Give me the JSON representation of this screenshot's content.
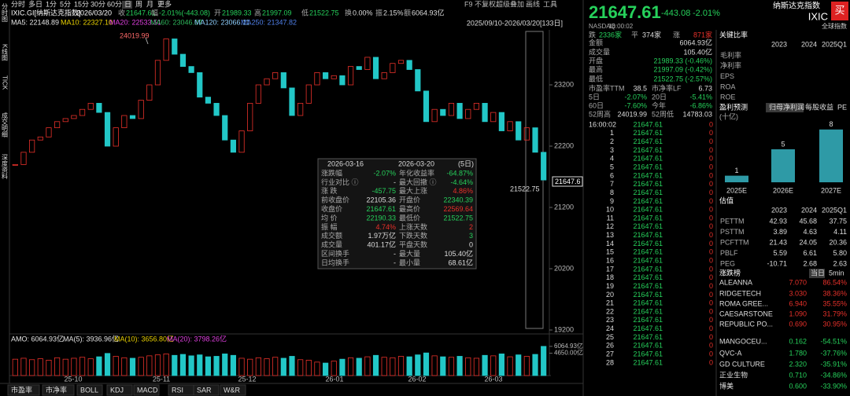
{
  "toolbar": [
    "分时",
    "多日",
    "1分",
    "5分",
    "15分",
    "30分",
    "60分",
    "日",
    "周",
    "月",
    "更多"
  ],
  "top_right": [
    "F9",
    "不复权",
    "超级叠加",
    "画线",
    "工具"
  ],
  "side_tabs": [
    "分时图",
    "K线图",
    "TICK",
    "成交明细",
    "深度资料"
  ],
  "info": {
    "name": "IXIC.GI[纳斯达克指数]",
    "date": "2026/03/20",
    "items": [
      {
        "label": "收",
        "value": "21647.61",
        "color": "#26d15b"
      },
      {
        "label": "幅",
        "value": "-2.01%(-443.08)",
        "color": "#26d15b"
      },
      {
        "label": "开",
        "value": "21989.33",
        "color": "#26d15b"
      },
      {
        "label": "高",
        "value": "21997.09",
        "color": "#26d15b"
      },
      {
        "label": "低",
        "value": "21522.75",
        "color": "#26d15b"
      },
      {
        "label": "换",
        "value": "0.00%",
        "color": "#dddddd"
      },
      {
        "label": "振",
        "value": "2.15%",
        "color": "#dddddd"
      },
      {
        "label": "额",
        "value": "6064.93亿",
        "color": "#dddddd"
      }
    ]
  },
  "ma": [
    {
      "label": "MA5: 22148.89",
      "color": "#e6e6e6"
    },
    {
      "label": "MA10: 22327.10",
      "color": "#e8d000"
    },
    {
      "label": "MA20: 22533.51",
      "color": "#e040e0"
    },
    {
      "label": "MA60: 23046.07",
      "color": "#2eb85c"
    },
    {
      "label": "MA120: 23066.11",
      "color": "#8fd0ff"
    },
    {
      "label": "MA250: 21347.82",
      "color": "#4f7fe8"
    }
  ],
  "range": "2025/09/10-2026/03/20[133日]",
  "kline": {
    "ylim": [
      19136,
      24072
    ],
    "yticks": [
      19200,
      20200,
      21200,
      22200,
      23200
    ],
    "up_color": "#e8312a",
    "down_color": "#22c7c7",
    "closes": [
      21900,
      22100,
      22300,
      22350,
      22500,
      22600,
      22650,
      22700,
      22800,
      22900,
      22750,
      22200,
      22500,
      22700,
      22650,
      22950,
      23200,
      23600,
      23950,
      23700,
      23500,
      23400,
      23000,
      22900,
      22700,
      22300,
      22100,
      22450,
      22900,
      23200,
      23300,
      23400,
      23150,
      22700,
      22900,
      23200,
      23400,
      23300,
      23350,
      23200,
      23500,
      23450,
      23650,
      23300,
      23400,
      23550,
      23600,
      23450,
      23100,
      22600,
      22800,
      22700,
      22900,
      22650,
      22800,
      22900,
      22600,
      22750,
      22450,
      22600,
      22300,
      22500,
      22100,
      21647.61
    ],
    "high_label": "24019.99",
    "low_label": "21522.75",
    "last_label": "21647.6"
  },
  "popup": {
    "start": "2026-03-16",
    "end": "2026-03-20",
    "days": "(5日)",
    "rows": [
      {
        "l1": "涨跌幅",
        "v1": "-2.07%",
        "c1": "#26d15b",
        "l2": "年化收益率",
        "v2": "-64.87%",
        "c2": "#26d15b"
      },
      {
        "l1": "行业对比 ⓘ",
        "v1": "-",
        "c1": "#dddddd",
        "l2": "最大回撤 ⓘ",
        "v2": "-4.64%",
        "c2": "#26d15b"
      },
      {
        "l1": "涨 跌",
        "v1": "-457.75",
        "c1": "#26d15b",
        "l2": "最大上涨",
        "v2": "4.86%",
        "c2": "#e8312a"
      },
      {
        "l1": "前收盘价",
        "v1": "22105.36",
        "c1": "#dddddd",
        "l2": "开盘价",
        "v2": "22340.39",
        "c2": "#26d15b"
      },
      {
        "l1": "收盘价",
        "v1": "21647.61",
        "c1": "#26d15b",
        "l2": "最高价",
        "v2": "22569.64",
        "c2": "#e8312a"
      },
      {
        "l1": "均 价",
        "v1": "22190.33",
        "c1": "#26d15b",
        "l2": "最低价",
        "v2": "21522.75",
        "c2": "#26d15b"
      },
      {
        "l1": "振 幅",
        "v1": "4.74%",
        "c1": "#e8312a",
        "l2": "上涨天数",
        "v2": "2",
        "c2": "#e8312a"
      },
      {
        "l1": "成交额",
        "v1": "1.97万亿",
        "c1": "#dddddd",
        "l2": "下跌天数",
        "v2": "3",
        "c2": "#26d15b"
      },
      {
        "l1": "成交量",
        "v1": "401.17亿",
        "c1": "#dddddd",
        "l2": "平盘天数",
        "v2": "0",
        "c2": "#dddddd"
      },
      {
        "l1": "区间换手",
        "v1": "-",
        "c1": "#dddddd",
        "l2": "最大量",
        "v2": "105.40亿",
        "c2": "#dddddd"
      },
      {
        "l1": "日均换手",
        "v1": "-",
        "c1": "#dddddd",
        "l2": "最小量",
        "v2": "68.61亿",
        "c2": "#dddddd"
      }
    ]
  },
  "amo": {
    "items": [
      {
        "label": "AMO: 6064.93亿",
        "color": "#e6e6e6"
      },
      {
        "label": "MA(5): 3936.96亿",
        "color": "#e6e6e6"
      },
      {
        "label": "MA(10): 3656.80亿",
        "color": "#e8d000"
      },
      {
        "label": "MA(20): 3798.26亿",
        "color": "#e040e0"
      }
    ],
    "ylim": [
      0,
      6200
    ],
    "ticks": [
      {
        "value": 6064.93,
        "label": "6064.93亿"
      },
      {
        "value": 4650,
        "label": "4650.00亿"
      }
    ],
    "volumes": [
      3400,
      3600,
      3300,
      3500,
      3200,
      3700,
      3400,
      3600,
      3800,
      3500,
      3900,
      4600,
      4000,
      3700,
      3600,
      3800,
      4100,
      4300,
      4500,
      4200,
      4400,
      4100,
      4300,
      3900,
      4000,
      4500,
      4200,
      3600,
      3400,
      3700,
      3500,
      3800,
      3600,
      4000,
      3300,
      3200,
      2800,
      2600,
      3000,
      3400,
      3700,
      3600,
      3900,
      4200,
      3800,
      3700,
      4000,
      3900,
      4300,
      4700,
      4100,
      3900,
      3800,
      4000,
      3700,
      3600,
      4200,
      4100,
      4500,
      3900,
      4300,
      4000,
      4400,
      6064.93
    ]
  },
  "dates": [
    "25-10",
    "25-11",
    "25-12",
    "26-01",
    "26-02",
    "26-03"
  ],
  "bottom_tabs": [
    "市盈率",
    "市净率",
    "BOLL",
    "KDJ",
    "MACD",
    "RSI",
    "SAR",
    "W&R"
  ],
  "quote": {
    "price": "21647.61",
    "change": "-443.08",
    "pct": "-2.01%",
    "name": "纳斯达克指数",
    "code": "IXIC",
    "buy": "买",
    "group": "全球指数",
    "exchange": "NASDAQ",
    "time": "16:00:02",
    "stats": [
      [
        {
          "label": "跌",
          "value": "2336家",
          "color": "#26d15b"
        },
        {
          "label": "平",
          "value": "374家",
          "color": "#dddddd"
        },
        {
          "label": "涨",
          "value": "871家",
          "color": "#e8312a"
        }
      ],
      [
        {
          "label": "金额",
          "value": "6064.93亿",
          "color": "#dddddd"
        }
      ],
      [
        {
          "label": "成交量",
          "value": "105.40亿",
          "color": "#dddddd"
        }
      ],
      [
        {
          "label": "开盘",
          "value": "21989.33 (-0.46%)",
          "color": "#26d15b"
        }
      ],
      [
        {
          "label": "最高",
          "value": "21997.09 (-0.42%)",
          "color": "#26d15b"
        }
      ],
      [
        {
          "label": "最低",
          "value": "21522.75 (-2.57%)",
          "color": "#26d15b"
        }
      ],
      [
        {
          "label": "市盈率TTM",
          "value": "38.5",
          "color": "#dddddd"
        },
        {
          "label": "市净率LF",
          "value": "6.73",
          "color": "#dddddd"
        }
      ],
      [
        {
          "label": "5日",
          "value": "-2.07%",
          "color": "#26d15b"
        },
        {
          "label": "20日",
          "value": "-5.41%",
          "color": "#26d15b"
        }
      ],
      [
        {
          "label": "60日",
          "value": "-7.60%",
          "color": "#26d15b"
        },
        {
          "label": "今年",
          "value": "-6.86%",
          "color": "#26d15b"
        }
      ],
      [
        {
          "label": "52周高",
          "value": "24019.99",
          "color": "#dddddd"
        },
        {
          "label": "52周低",
          "value": "14783.03",
          "color": "#dddddd"
        }
      ]
    ]
  },
  "trades": [
    [
      "16:00:02",
      21647.61,
      0
    ],
    [
      1,
      21647.61,
      0
    ],
    [
      2,
      21647.61,
      0
    ],
    [
      3,
      21647.61,
      0
    ],
    [
      4,
      21647.61,
      0
    ],
    [
      5,
      21647.61,
      0
    ],
    [
      6,
      21647.61,
      0
    ],
    [
      7,
      21647.61,
      0
    ],
    [
      8,
      21647.61,
      0
    ],
    [
      9,
      21647.61,
      0
    ],
    [
      10,
      21647.61,
      0
    ],
    [
      11,
      21647.61,
      0
    ],
    [
      12,
      21647.61,
      0
    ],
    [
      13,
      21647.61,
      0
    ],
    [
      14,
      21647.61,
      0
    ],
    [
      15,
      21647.61,
      0
    ],
    [
      16,
      21647.61,
      0
    ],
    [
      17,
      21647.61,
      0
    ],
    [
      18,
      21647.61,
      0
    ],
    [
      19,
      21647.61,
      0
    ],
    [
      20,
      21647.61,
      0
    ],
    [
      21,
      21647.61,
      0
    ],
    [
      22,
      21647.61,
      0
    ],
    [
      23,
      21647.61,
      0
    ],
    [
      24,
      21647.61,
      0
    ],
    [
      25,
      21647.61,
      0
    ],
    [
      26,
      21647.61,
      0
    ],
    [
      27,
      21647.61,
      0
    ],
    [
      28,
      21647.61,
      0
    ]
  ],
  "ratios": {
    "title": "关键比率",
    "cols": [
      "2023",
      "2024",
      "2025Q1"
    ],
    "rows": [
      "毛利率",
      "净利率",
      "EPS",
      "ROA",
      "ROE"
    ]
  },
  "forecast": {
    "title": "盈利预测",
    "tabs": [
      "归母净利润",
      "每股收益",
      "PE"
    ],
    "unit": "(十亿)",
    "categories": [
      "2025E",
      "2026E",
      "2027E"
    ],
    "values": [
      1,
      5,
      8
    ],
    "color": "#2e9aa6"
  },
  "valuation": {
    "title": "估值",
    "cols": [
      "2023",
      "2024",
      "2025Q1"
    ],
    "rows": [
      {
        "label": "PETTM",
        "values": [
          "42.93",
          "45.68",
          "37.75"
        ]
      },
      {
        "label": "PSTTM",
        "values": [
          "3.89",
          "4.63",
          "4.11"
        ]
      },
      {
        "label": "PCFTTM",
        "values": [
          "21.43",
          "24.05",
          "20.36"
        ]
      },
      {
        "label": "PBLF",
        "values": [
          "5.59",
          "6.61",
          "5.80"
        ]
      },
      {
        "label": "PEG",
        "values": [
          "-10.71",
          "2.68",
          "2.63"
        ]
      }
    ]
  },
  "movers": {
    "title": "涨跌榜",
    "tabs": [
      "当日",
      "5min"
    ],
    "rows": [
      [
        "ALEANNA",
        "7.070",
        "86.54%"
      ],
      [
        "RIDGETECH",
        "3.030",
        "38.36%"
      ],
      [
        "ROMA GREE...",
        "6.940",
        "35.55%"
      ],
      [
        "CAESARSTONE",
        "1.090",
        "31.79%"
      ],
      [
        "REPUBLIC PO...",
        "0.690",
        "30.95%"
      ],
      [
        "MANGOCEU...",
        "0.162",
        "-54.51%"
      ],
      [
        "QVC-A",
        "1.780",
        "-37.76%"
      ],
      [
        "GD CULTURE",
        "2.320",
        "-35.91%"
      ],
      [
        "正业生物",
        "0.710",
        "-34.86%"
      ],
      [
        "博美",
        "0.600",
        "-33.90%"
      ]
    ]
  }
}
